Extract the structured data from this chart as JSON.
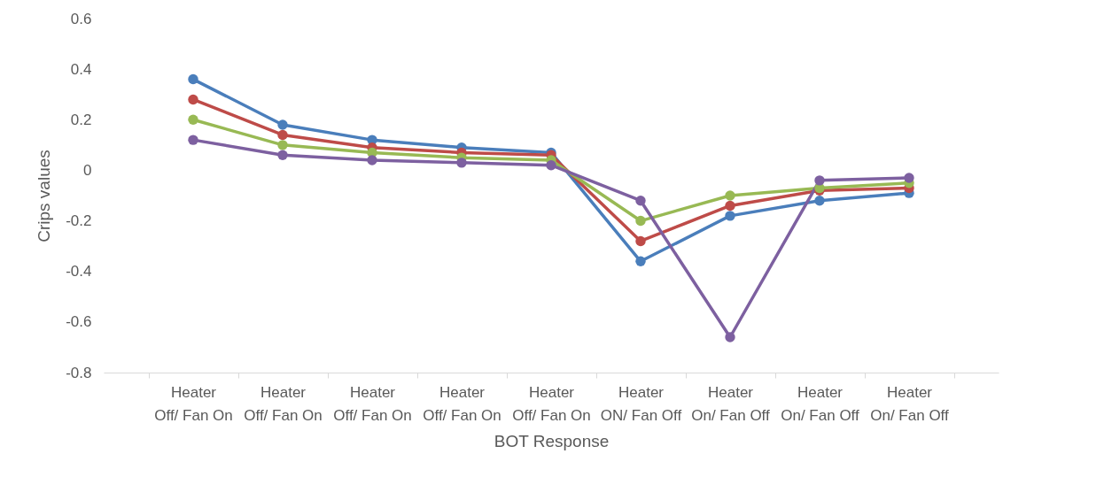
{
  "chart_data": {
    "type": "line",
    "xlabel": "BOT Response",
    "ylabel": "Crips values",
    "categories": [
      "Heater Off/ Fan On",
      "Heater Off/ Fan On",
      "Heater Off/ Fan On",
      "Heater Off/ Fan On",
      "Heater Off/ Fan On",
      "Heater ON/ Fan Off",
      "Heater On/ Fan Off",
      "Heater On/ Fan Off",
      "Heater On/ Fan Off"
    ],
    "series": [
      {
        "color": "#4a7ebb",
        "values": [
          0.36,
          0.18,
          0.12,
          0.09,
          0.07,
          -0.36,
          -0.18,
          -0.12,
          -0.09
        ]
      },
      {
        "color": "#be4b48",
        "values": [
          0.28,
          0.14,
          0.09,
          0.07,
          0.06,
          -0.28,
          -0.14,
          -0.08,
          -0.07
        ]
      },
      {
        "color": "#98b954",
        "values": [
          0.2,
          0.1,
          0.07,
          0.05,
          0.04,
          -0.2,
          -0.1,
          -0.07,
          -0.05
        ]
      },
      {
        "color": "#7d60a0",
        "values": [
          0.12,
          0.06,
          0.04,
          0.03,
          0.02,
          -0.12,
          -0.66,
          -0.04,
          -0.03
        ]
      }
    ],
    "ylim": [
      -0.8,
      0.6
    ],
    "yticks": [
      -0.8,
      -0.6,
      -0.4,
      -0.2,
      {
        "value": 0,
        "label": "0"
      },
      0.2,
      0.4,
      0.6
    ],
    "grid": false,
    "legend": false,
    "marker": "circle",
    "line_style": "solid"
  }
}
